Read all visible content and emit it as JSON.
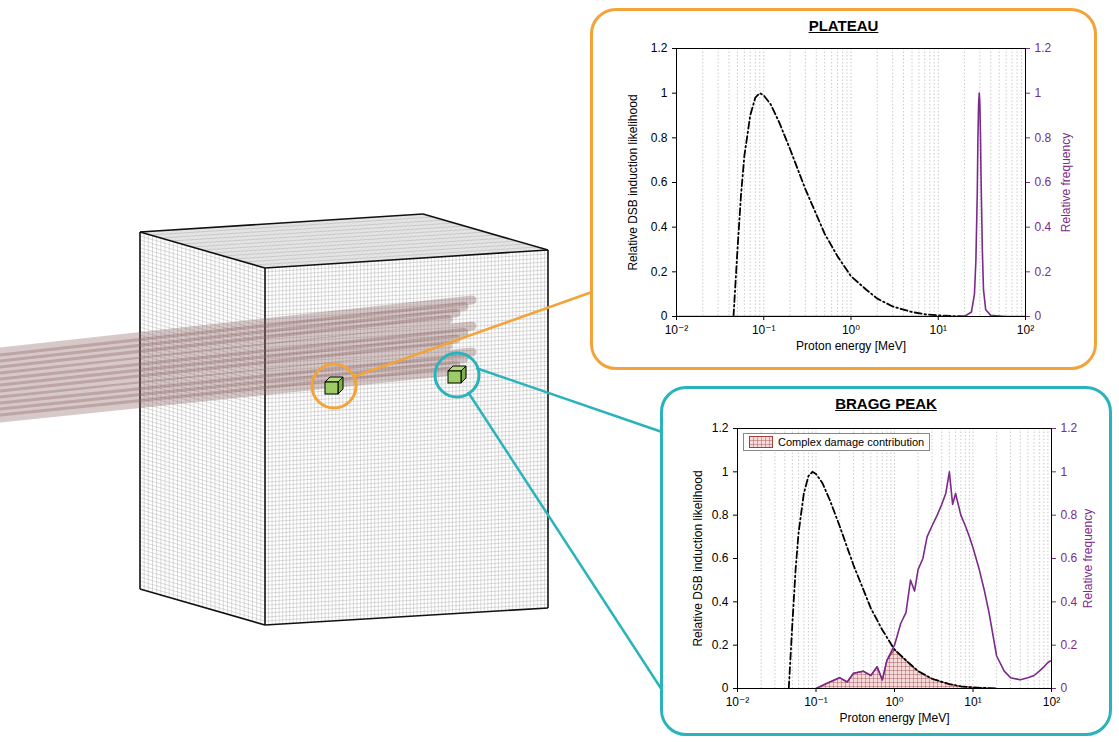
{
  "chart_data": [
    {
      "type": "line",
      "title": "PLATEAU",
      "x_label": "Proton energy [MeV]",
      "y_label": "Relative DSB induction likelihood",
      "y2_label": "Relative frequency",
      "log": "x",
      "grid": true,
      "xlim": [
        0.01,
        100
      ],
      "xticks": [
        {
          "value": 0.01,
          "label": "10⁻²"
        },
        {
          "value": 0.1,
          "label": "10⁻¹"
        },
        {
          "value": 1,
          "label": "10⁰"
        },
        {
          "value": 10,
          "label": "10¹"
        },
        {
          "value": 100,
          "label": "10²"
        }
      ],
      "ylim": [
        0,
        1.2
      ],
      "yticks": [
        0,
        0.2,
        0.4,
        0.6,
        0.8,
        1,
        1.2
      ],
      "y2lim": [
        0,
        1.2
      ],
      "y2ticks": [
        0,
        0.2,
        0.4,
        0.6,
        0.8,
        1,
        1.2
      ],
      "series": [
        {
          "type": "line",
          "color": "#000000",
          "line_style": "dashdot",
          "x": [
            0.045,
            0.05,
            0.055,
            0.06,
            0.07,
            0.08,
            0.09,
            0.1,
            0.12,
            0.15,
            0.2,
            0.3,
            0.5,
            0.7,
            1,
            1.5,
            2,
            3,
            5,
            7,
            10,
            20
          ],
          "values": [
            0,
            0.3,
            0.55,
            0.72,
            0.9,
            0.98,
            1,
            0.99,
            0.95,
            0.87,
            0.75,
            0.57,
            0.37,
            0.27,
            0.18,
            0.12,
            0.08,
            0.045,
            0.02,
            0.01,
            0.005,
            0
          ]
        },
        {
          "type": "line",
          "color": "#7b2a8c",
          "line_style": "solid",
          "axis": "y2",
          "x": [
            0.01,
            5,
            20,
            24,
            26,
            27,
            28,
            28.5,
            29,
            29.5,
            30,
            30.5,
            31,
            32,
            33,
            35,
            40,
            60,
            100
          ],
          "values": [
            0,
            0,
            0,
            0.02,
            0.1,
            0.25,
            0.55,
            0.8,
            0.95,
            1,
            0.95,
            0.8,
            0.6,
            0.3,
            0.12,
            0.03,
            0.005,
            0,
            0
          ]
        }
      ]
    },
    {
      "type": "line",
      "title": "BRAGG PEAK",
      "x_label": "Proton energy [MeV]",
      "y_label": "Relative DSB induction likelihood",
      "y2_label": "Relative frequency",
      "log": "x",
      "grid": true,
      "legend": "top-left",
      "xlim": [
        0.01,
        100
      ],
      "xticks": [
        {
          "value": 0.01,
          "label": "10⁻²"
        },
        {
          "value": 0.1,
          "label": "10⁻¹"
        },
        {
          "value": 1,
          "label": "10⁰"
        },
        {
          "value": 10,
          "label": "10¹"
        },
        {
          "value": 100,
          "label": "10²"
        }
      ],
      "ylim": [
        0,
        1.2
      ],
      "yticks": [
        0,
        0.2,
        0.4,
        0.6,
        0.8,
        1,
        1.2
      ],
      "y2lim": [
        0,
        1.2
      ],
      "y2ticks": [
        0,
        0.2,
        0.4,
        0.6,
        0.8,
        1,
        1.2
      ],
      "series": [
        {
          "name": "Complex damage contribution",
          "type": "area",
          "color": "#a0413f",
          "x": [
            0.1,
            0.15,
            0.2,
            0.25,
            0.3,
            0.4,
            0.5,
            0.6,
            0.7,
            0.8,
            1,
            1.2,
            1.5,
            2,
            3,
            5,
            7,
            10,
            20
          ],
          "values": [
            0,
            0.03,
            0.05,
            0.03,
            0.07,
            0.08,
            0.06,
            0.1,
            0.04,
            0.13,
            0.18,
            0.15,
            0.12,
            0.08,
            0.045,
            0.02,
            0.01,
            0.005,
            0
          ]
        },
        {
          "type": "line",
          "color": "#000000",
          "line_style": "dashdot",
          "x": [
            0.045,
            0.05,
            0.055,
            0.06,
            0.07,
            0.08,
            0.09,
            0.1,
            0.12,
            0.15,
            0.2,
            0.3,
            0.5,
            0.7,
            1,
            1.5,
            2,
            3,
            5,
            7,
            10,
            20
          ],
          "values": [
            0,
            0.3,
            0.55,
            0.72,
            0.9,
            0.98,
            1,
            0.99,
            0.95,
            0.87,
            0.75,
            0.57,
            0.37,
            0.27,
            0.18,
            0.12,
            0.08,
            0.045,
            0.02,
            0.01,
            0.005,
            0
          ]
        },
        {
          "type": "line",
          "color": "#7b2a8c",
          "line_style": "solid",
          "axis": "y2",
          "x": [
            0.1,
            0.15,
            0.2,
            0.25,
            0.3,
            0.4,
            0.5,
            0.6,
            0.7,
            0.8,
            1,
            1.2,
            1.4,
            1.6,
            1.8,
            2,
            2.3,
            2.6,
            3,
            3.5,
            4,
            4.5,
            5,
            5.5,
            6,
            7,
            8,
            9,
            10,
            12,
            14,
            16,
            20,
            25,
            30,
            40,
            50,
            60,
            70,
            80,
            90,
            100
          ],
          "values": [
            0,
            0.03,
            0.05,
            0.03,
            0.07,
            0.08,
            0.06,
            0.1,
            0.04,
            0.13,
            0.2,
            0.3,
            0.35,
            0.5,
            0.45,
            0.55,
            0.6,
            0.7,
            0.75,
            0.8,
            0.85,
            0.9,
            1,
            0.85,
            0.9,
            0.8,
            0.75,
            0.7,
            0.65,
            0.55,
            0.45,
            0.35,
            0.15,
            0.08,
            0.05,
            0.04,
            0.05,
            0.06,
            0.08,
            0.1,
            0.12,
            0.13
          ]
        }
      ]
    }
  ]
}
